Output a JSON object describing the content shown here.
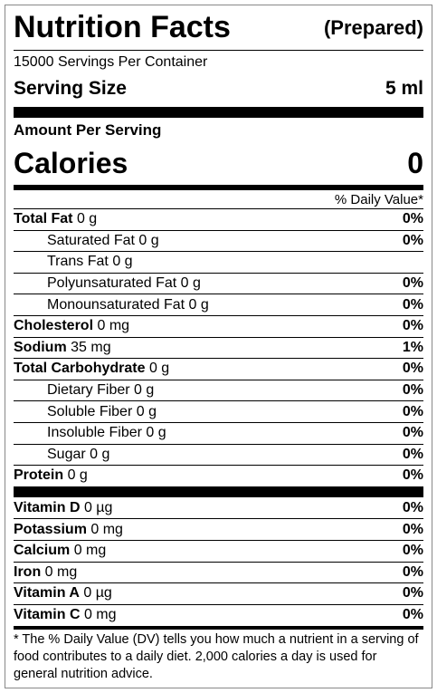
{
  "header": {
    "title": "Nutrition Facts",
    "subtitle": "(Prepared)"
  },
  "servings_per_container": "15000 Servings Per Container",
  "serving_size": {
    "label": "Serving Size",
    "value": "5 ml"
  },
  "amount_per_serving": "Amount Per Serving",
  "calories": {
    "label": "Calories",
    "value": "0"
  },
  "daily_value_header": "% Daily Value*",
  "nutrients": [
    {
      "name": "Total Fat",
      "amount": "0 g",
      "dv": "0%",
      "sub": [
        {
          "name": "Saturated Fat",
          "amount": "0 g",
          "dv": "0%"
        },
        {
          "name": "Trans Fat",
          "amount": "0 g"
        },
        {
          "name": "Polyunsaturated Fat",
          "amount": "0 g",
          "dv": "0%"
        },
        {
          "name": "Monounsaturated Fat",
          "amount": "0 g",
          "dv": "0%"
        }
      ]
    },
    {
      "name": "Cholesterol",
      "amount": "0 mg",
      "dv": "0%"
    },
    {
      "name": "Sodium",
      "amount": "35 mg",
      "dv": "1%"
    },
    {
      "name": "Total Carbohydrate",
      "amount": "0 g",
      "dv": "0%",
      "sub": [
        {
          "name": "Dietary Fiber",
          "amount": "0 g",
          "dv": "0%"
        },
        {
          "name": "Soluble Fiber",
          "amount": "0 g",
          "dv": "0%"
        },
        {
          "name": "Insoluble Fiber",
          "amount": "0 g",
          "dv": "0%"
        },
        {
          "name": "Sugar",
          "amount": "0 g",
          "dv": "0%"
        }
      ]
    },
    {
      "name": "Protein",
      "amount": "0 g",
      "dv": "0%"
    }
  ],
  "vitamins": [
    {
      "name": "Vitamin D",
      "amount": "0 µg",
      "dv": "0%"
    },
    {
      "name": "Potassium",
      "amount": "0 mg",
      "dv": "0%"
    },
    {
      "name": "Calcium",
      "amount": "0 mg",
      "dv": "0%"
    },
    {
      "name": "Iron",
      "amount": "0 mg",
      "dv": "0%"
    },
    {
      "name": "Vitamin A",
      "amount": "0 µg",
      "dv": "0%"
    },
    {
      "name": "Vitamin C",
      "amount": "0 mg",
      "dv": "0%"
    }
  ],
  "footnote": "* The % Daily Value (DV) tells you how much a nutrient in a serving of food contributes to a daily diet. 2,000 calories a day is used for general nutrition advice."
}
